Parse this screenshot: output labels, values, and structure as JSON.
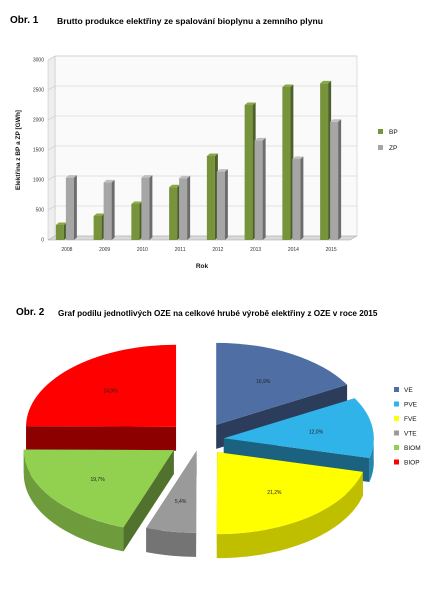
{
  "figure1": {
    "number": "Obr. 1",
    "title": "Brutto produkce elektřiny ze spalování bioplynu a zemního plynu"
  },
  "figure2": {
    "number": "Obr. 2",
    "title": "Graf podílu jednotlivých  OZE na celkové hrubé výrobě elektřiny z OZE v roce 2015"
  },
  "colors": {
    "BP": "#77933c",
    "ZP": "#a6a6a6",
    "VE": "#4f6fa4",
    "PVE": "#2fb3e8",
    "FVE": "#ffff00",
    "VTE": "#9a9a9a",
    "BIOM": "#92d050",
    "BIOP": "#ff0000"
  },
  "chart_data": [
    {
      "type": "bar",
      "xlabel": "Rok",
      "ylabel": "Elektřina z BP a ZP [GWh]",
      "categories": [
        "2008",
        "2009",
        "2010",
        "2011",
        "2012",
        "2013",
        "2014",
        "2015"
      ],
      "series": [
        {
          "name": "BP",
          "values": [
            250,
            400,
            600,
            880,
            1400,
            2250,
            2550,
            2610
          ]
        },
        {
          "name": "ZP",
          "values": [
            1040,
            960,
            1040,
            1030,
            1140,
            1660,
            1350,
            1970
          ]
        }
      ],
      "ylim": [
        0,
        3000
      ],
      "yticks": [
        "0",
        "500",
        "1000",
        "1500",
        "2000",
        "2500",
        "3000"
      ],
      "grid": true,
      "legend": "right"
    },
    {
      "type": "pie",
      "categories": [
        "VE",
        "PVE",
        "FVE",
        "VTE",
        "BIOM",
        "BIOP"
      ],
      "values": [
        16.9,
        12.0,
        21.2,
        5.4,
        19.7,
        24.9
      ],
      "labels": [
        "16,9%",
        "12,0%",
        "21,2%",
        "5,4%",
        "19,7%",
        "24,9%"
      ],
      "exploded": true,
      "legend": "right"
    }
  ]
}
